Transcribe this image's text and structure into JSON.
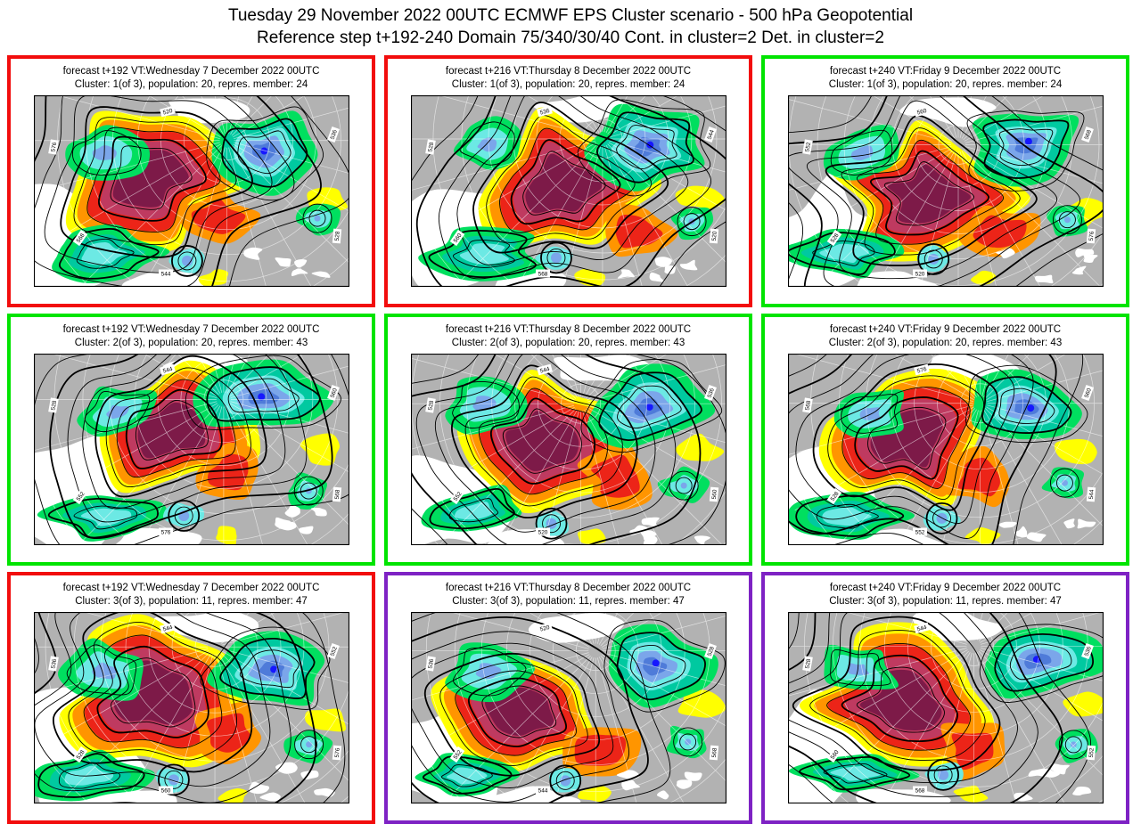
{
  "title": {
    "line1": "Tuesday 29 November 2022 00UTC ECMWF EPS Cluster scenario - 500 hPa Geopotential",
    "line2": "Reference step t+192-240 Domain 75/340/30/40 Cont. in cluster=2 Det. in cluster=2"
  },
  "panels": [
    {
      "header_line1": "forecast t+192 VT:Wednesday 7 December 2022 00UTC",
      "header_line2": "Cluster: 1(of 3), population: 20, repres. member: 24",
      "border_color": "red"
    },
    {
      "header_line1": "forecast t+216 VT:Thursday 8 December 2022 00UTC",
      "header_line2": "Cluster: 1(of 3), population: 20, repres. member: 24",
      "border_color": "red"
    },
    {
      "header_line1": "forecast t+240 VT:Friday 9 December 2022 00UTC",
      "header_line2": "Cluster: 1(of 3), population: 20, repres. member: 24",
      "border_color": "green"
    },
    {
      "header_line1": "forecast t+192 VT:Wednesday 7 December 2022 00UTC",
      "header_line2": "Cluster: 2(of 3), population: 20, repres. member: 43",
      "border_color": "green"
    },
    {
      "header_line1": "forecast t+216 VT:Thursday 8 December 2022 00UTC",
      "header_line2": "Cluster: 2(of 3), population: 20, repres. member: 43",
      "border_color": "green"
    },
    {
      "header_line1": "forecast t+240 VT:Friday 9 December 2022 00UTC",
      "header_line2": "Cluster: 2(of 3), population: 20, repres. member: 43",
      "border_color": "green"
    },
    {
      "header_line1": "forecast t+192 VT:Wednesday 7 December 2022 00UTC",
      "header_line2": "Cluster: 3(of 3), population: 11, repres. member: 47",
      "border_color": "red"
    },
    {
      "header_line1": "forecast t+216 VT:Thursday 8 December 2022 00UTC",
      "header_line2": "Cluster: 3(of 3), population: 11, repres. member: 47",
      "border_color": "purple"
    },
    {
      "header_line1": "forecast t+240 VT:Friday 9 December 2022 00UTC",
      "header_line2": "Cluster: 3(of 3), population: 11, repres. member: 47",
      "border_color": "purple"
    }
  ],
  "border_colors": {
    "red": "#f20d0d",
    "green": "#00e400",
    "purple": "#7e22c4"
  },
  "map_palette": {
    "background_gray": "#b2b2b2",
    "no_shade_white": "#ffffff",
    "yellow": "#ffff00",
    "orange": "#ff9500",
    "red": "#ec2418",
    "crimson": "#bf3a60",
    "maroon": "#7d1a48",
    "green": "#00df5f",
    "teal": "#00c9a0",
    "cyan": "#6ce9e4",
    "light_blue": "#7ba6ea",
    "medium_blue": "#4f7bd9",
    "blue": "#1617ff",
    "contour": "#000000",
    "graticule": "#ffffff"
  },
  "contour_level_labels_dam": [
    "520",
    "528",
    "536",
    "544",
    "552",
    "560",
    "568",
    "576"
  ]
}
